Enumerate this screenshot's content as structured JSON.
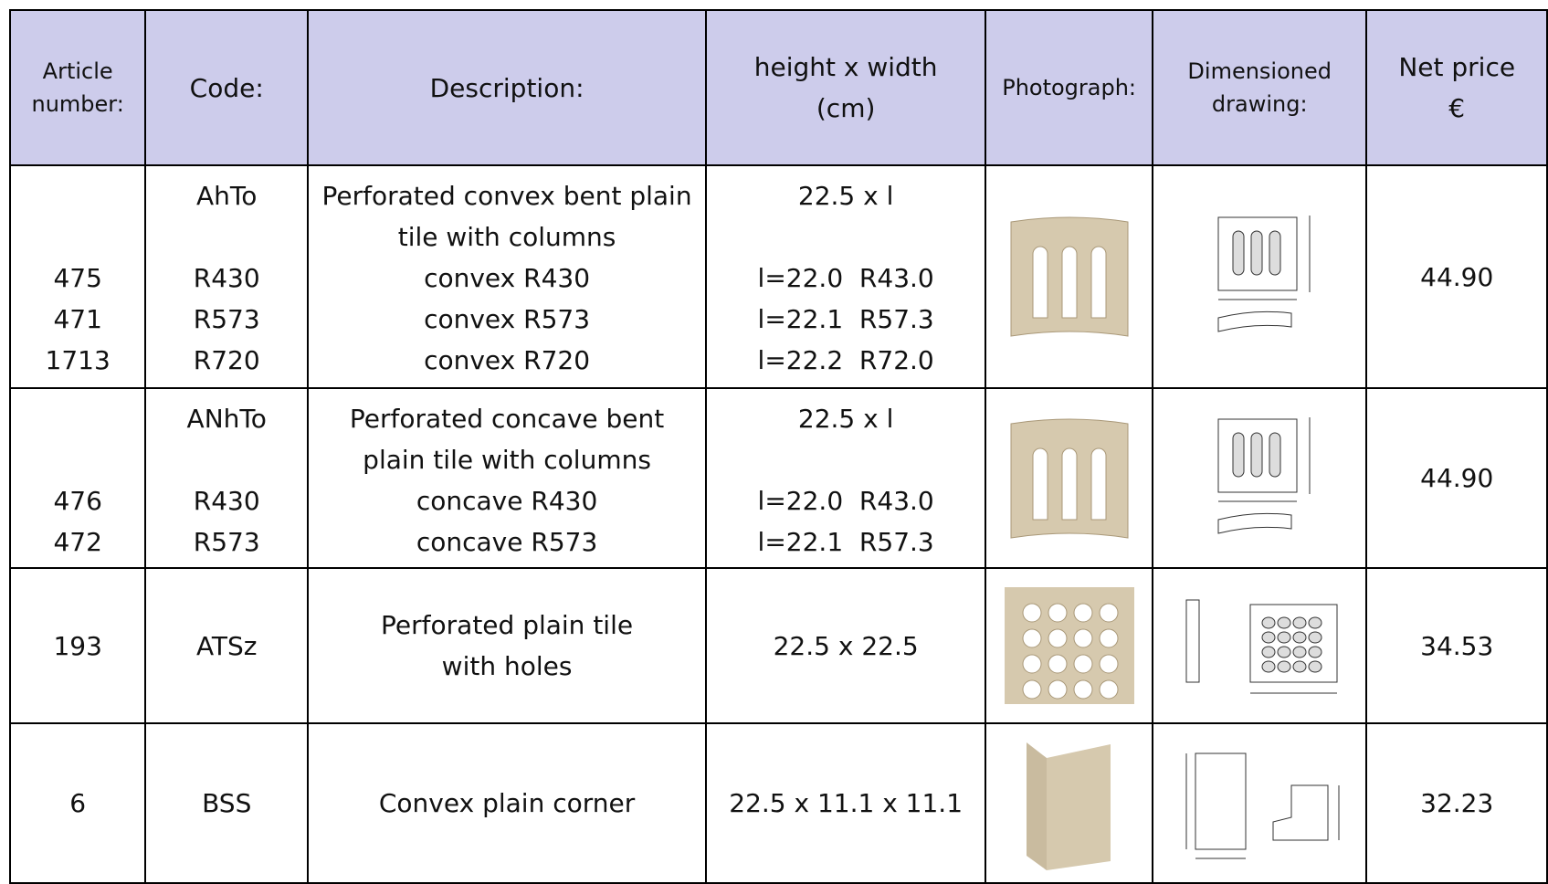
{
  "header": {
    "article": [
      "Article",
      "number:"
    ],
    "code": [
      "Code:"
    ],
    "description": [
      "Description:"
    ],
    "size": [
      "height x width",
      "(cm)"
    ],
    "photo": [
      "Photograph:"
    ],
    "drawing": [
      "Dimensioned",
      "drawing:"
    ],
    "price": [
      "Net price",
      "€"
    ]
  },
  "rows": [
    {
      "code": "AhTo",
      "description": [
        "Perforated convex bent plain",
        "tile with columns"
      ],
      "size": "22.5 x l",
      "variants": [
        {
          "article": "475",
          "code": "R430",
          "description": "convex R430",
          "size": "l=22.0  R43.0"
        },
        {
          "article": "471",
          "code": "R573",
          "description": "convex R573",
          "size": "l=22.1  R57.3"
        },
        {
          "article": "1713",
          "code": "R720",
          "description": "convex R720",
          "size": "l=22.2  R72.0"
        }
      ],
      "price": "44.90"
    },
    {
      "code": "ANhTo",
      "description": [
        "Perforated concave bent",
        "plain tile with columns"
      ],
      "size": "22.5 x l",
      "variants": [
        {
          "article": "476",
          "code": "R430",
          "description": "concave R430",
          "size": "l=22.0  R43.0"
        },
        {
          "article": "472",
          "code": "R573",
          "description": "concave R573",
          "size": "l=22.1  R57.3"
        }
      ],
      "price": "44.90"
    },
    {
      "article": "193",
      "code": "ATSz",
      "description": [
        "Perforated plain tile",
        "with holes"
      ],
      "size": "22.5 x 22.5",
      "price": "34.53"
    },
    {
      "article": "6",
      "code": "BSS",
      "description": [
        "Convex plain corner"
      ],
      "size": "22.5 x 11.1 x 11.1",
      "price": "32.23"
    }
  ]
}
